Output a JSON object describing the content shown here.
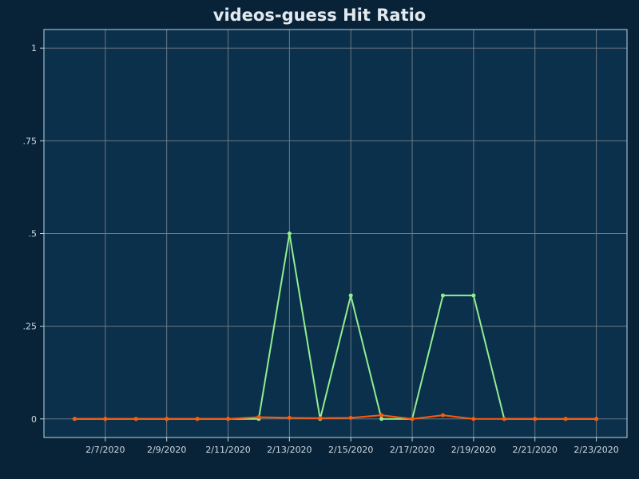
{
  "chart_data": {
    "type": "line",
    "title": "videos-guess Hit Ratio",
    "xlabel": "",
    "ylabel": "",
    "x": [
      "2/6/2020",
      "2/7/2020",
      "2/8/2020",
      "2/9/2020",
      "2/10/2020",
      "2/11/2020",
      "2/12/2020",
      "2/13/2020",
      "2/14/2020",
      "2/15/2020",
      "2/16/2020",
      "2/17/2020",
      "2/18/2020",
      "2/19/2020",
      "2/20/2020",
      "2/21/2020",
      "2/22/2020",
      "2/23/2020"
    ],
    "x_tick_labels": [
      "2/7/2020",
      "2/9/2020",
      "2/11/2020",
      "2/13/2020",
      "2/15/2020",
      "2/17/2020",
      "2/19/2020",
      "2/21/2020",
      "2/23/2020"
    ],
    "y_ticks": [
      0,
      0.25,
      0.5,
      0.75,
      1
    ],
    "y_tick_labels": [
      "0",
      ".25",
      ".5",
      ".75",
      "1"
    ],
    "ylim": [
      -0.05,
      1.05
    ],
    "xlim": [
      "2/5/2020",
      "2/24/2020"
    ],
    "grid": true,
    "legend": "none",
    "series": [
      {
        "color": "#90ee90",
        "values": [
          0,
          0,
          0,
          0,
          0,
          0,
          0,
          0.5,
          0,
          0.333,
          0,
          0,
          0.333,
          0.333,
          0,
          0,
          0,
          0
        ]
      },
      {
        "color": "#ff5a0a",
        "values": [
          0,
          0,
          0,
          0,
          0,
          0,
          0.005,
          0.003,
          0.002,
          0.003,
          0.01,
          0,
          0.01,
          0,
          0,
          0,
          0,
          0
        ]
      }
    ],
    "colors": {
      "background": "#082338",
      "plot_background": "#0b304b",
      "plot_border": "#bcd4e6",
      "grid": "#6e7883"
    }
  }
}
